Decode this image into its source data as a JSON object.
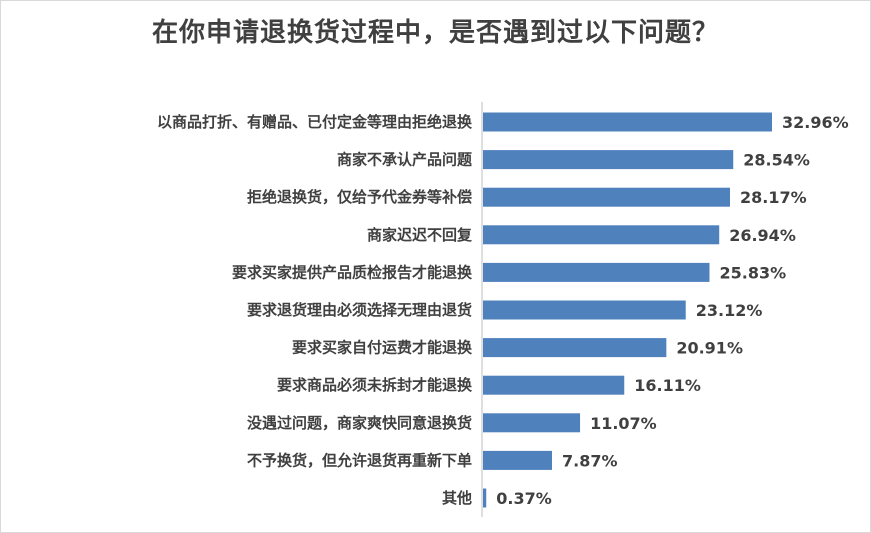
{
  "chart_data": {
    "type": "bar",
    "orientation": "horizontal",
    "title": "在你申请退换货过程中，是否遇到过以下问题？",
    "categories": [
      "以商品打折、有赠品、已付定金等理由拒绝退换",
      "商家不承认产品问题",
      "拒绝退换货，仅给予代金券等补偿",
      "商家迟迟不回复",
      "要求买家提供产品质检报告才能退换",
      "要求退货理由必须选择无理由退货",
      "要求买家自付运费才能退换",
      "要求商品必须未拆封才能退换",
      "没遇过问题，商家爽快同意退换货",
      "不予换货，但允许退货再重新下单",
      "其他"
    ],
    "values": [
      32.96,
      28.54,
      28.17,
      26.94,
      25.83,
      23.12,
      20.91,
      16.11,
      11.07,
      7.87,
      0.37
    ],
    "value_labels": [
      "32.96%",
      "28.54%",
      "28.17%",
      "26.94%",
      "25.83%",
      "23.12%",
      "20.91%",
      "16.11%",
      "11.07%",
      "7.87%",
      "0.37%"
    ],
    "bar_color": "#4f81bd",
    "grid": false,
    "legend": "none"
  }
}
